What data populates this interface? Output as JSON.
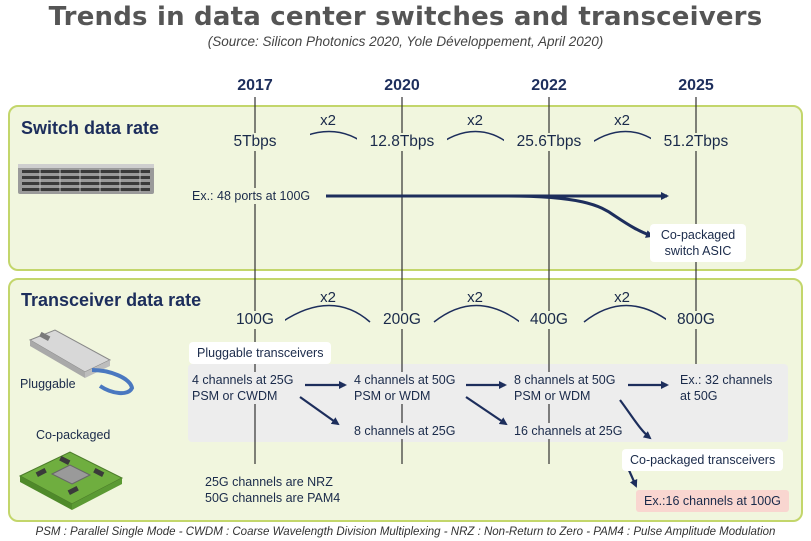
{
  "title": "Trends in data center switches and transceivers",
  "subtitle": "(Source: Silicon Photonics 2020, Yole Développement, April 2020)",
  "years": [
    "2017",
    "2020",
    "2022",
    "2025"
  ],
  "multiplier": "x2",
  "switch": {
    "title": "Switch data rate",
    "rates": [
      "5Tbps",
      "12.8Tbps",
      "25.6Tbps",
      "51.2Tbps"
    ],
    "example": "Ex.: 48 ports at 100G",
    "copackaged_line1": "Co-packaged",
    "copackaged_line2": "switch ASIC",
    "image_name": "network-switch-image"
  },
  "transceiver": {
    "title": "Transceiver data rate",
    "rates": [
      "100G",
      "200G",
      "400G",
      "800G"
    ],
    "pluggable_box": "Pluggable transceivers",
    "pluggable_label": "Pluggable",
    "copackaged_label": "Co-packaged",
    "c2017_line1": "4 channels at 25G",
    "c2017_line2": "PSM or CWDM",
    "c2020_line1": "4 channels at 50G",
    "c2020_line2": "PSM or WDM",
    "c2020_b": "8 channels at 25G",
    "c2022_line1": "8 channels at 50G",
    "c2022_line2": "PSM or WDM",
    "c2022_b": "16 channels at 25G",
    "c2025_line1": "Ex.: 32 channels",
    "c2025_line2": "at 50G",
    "copackaged_box": "Co-packaged transceivers",
    "copackaged_example": "Ex.:16 channels at 100G",
    "note_line1": "25G channels are NRZ",
    "note_line2": "50G channels are PAM4"
  },
  "footnote": "PSM : Parallel Single Mode - CWDM : Coarse Wavelength Division Multiplexing - NRZ : Non-Return to Zero - PAM4 : Pulse Amplitude Modulation",
  "colors": {
    "panel_border": "#c3d66b",
    "panel_fill": "#f1f6de",
    "arrow": "#1d2e5c",
    "accent_box": "#f9d6d0"
  }
}
